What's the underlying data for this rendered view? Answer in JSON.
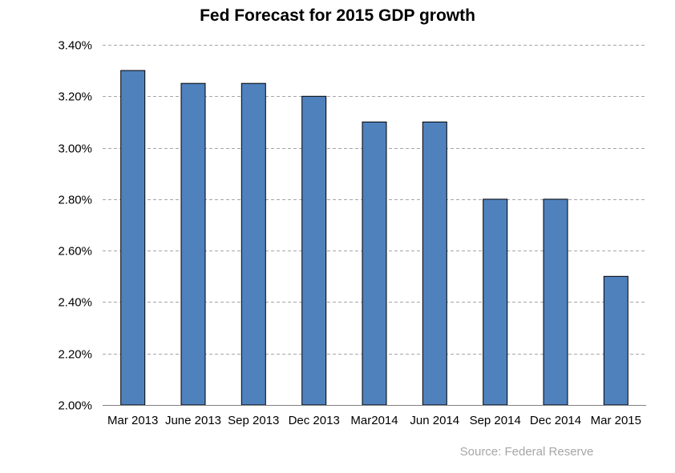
{
  "chart_data": {
    "type": "bar",
    "title": "Fed Forecast for 2015 GDP growth",
    "xlabel": "",
    "ylabel": "",
    "categories": [
      "Mar 2013",
      "June 2013",
      "Sep 2013",
      "Dec 2013",
      "Mar2014",
      "Jun 2014",
      "Sep 2014",
      "Dec 2014",
      "Mar 2015"
    ],
    "values": [
      3.3,
      3.25,
      3.25,
      3.2,
      3.1,
      3.1,
      2.8,
      2.8,
      2.5
    ],
    "ylim": [
      2.0,
      3.4
    ],
    "yticks": [
      2.0,
      2.2,
      2.4,
      2.6,
      2.8,
      3.0,
      3.2,
      3.4
    ],
    "ytick_labels": [
      "2.00%",
      "2.20%",
      "2.40%",
      "2.60%",
      "2.80%",
      "3.00%",
      "3.20%",
      "3.40%"
    ],
    "grid": true,
    "legend": "none",
    "annotation": "Source: Federal Reserve",
    "colors": {
      "bar": "#4f81bd",
      "bar_edge": "#000000",
      "grid": "#a6a6a6",
      "axis": "#808080",
      "source": "#a6a6a6"
    }
  }
}
